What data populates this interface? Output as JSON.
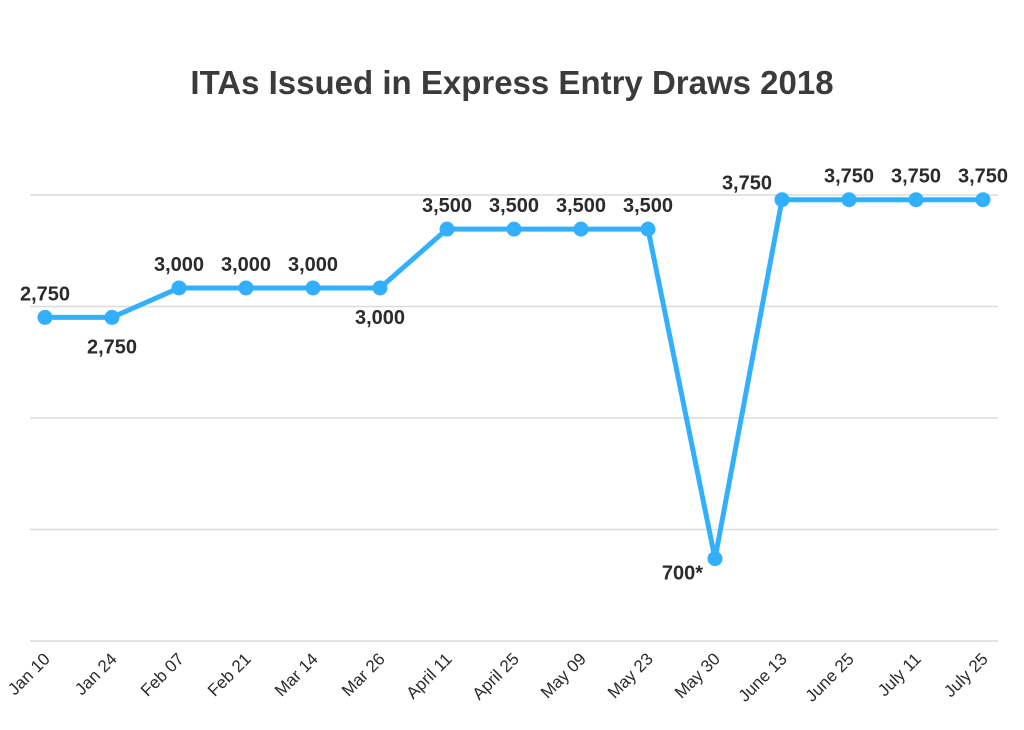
{
  "chart_data": {
    "type": "line",
    "title": "ITAs Issued in Express Entry Draws 2018",
    "xlabel": "",
    "ylabel": "",
    "ylim": [
      0,
      3790
    ],
    "grid": true,
    "legend": "none",
    "line_color": "#33b0fd",
    "categories": [
      "Jan 10",
      "Jan 24",
      "Feb 07",
      "Feb 21",
      "Mar 14",
      "Mar 26",
      "April 11",
      "April 25",
      "May 09",
      "May 23",
      "May 30",
      "June 13",
      "June 25",
      "July 11",
      "July 25"
    ],
    "values": [
      2750,
      2750,
      3000,
      3000,
      3000,
      3000,
      3500,
      3500,
      3500,
      3500,
      700,
      3750,
      3750,
      3750,
      3750
    ],
    "data_labels": [
      "2,750",
      "2,750",
      "3,000",
      "3,000",
      "3,000",
      "3,000",
      "3,500",
      "3,500",
      "3,500",
      "3,500",
      "700*",
      "3,750",
      "3,750",
      "3,750",
      "3,750"
    ],
    "label_placement": [
      "above",
      "below",
      "above",
      "above",
      "above",
      "below",
      "above",
      "above",
      "above",
      "above",
      "left",
      "above-left",
      "above",
      "above",
      "above"
    ]
  }
}
